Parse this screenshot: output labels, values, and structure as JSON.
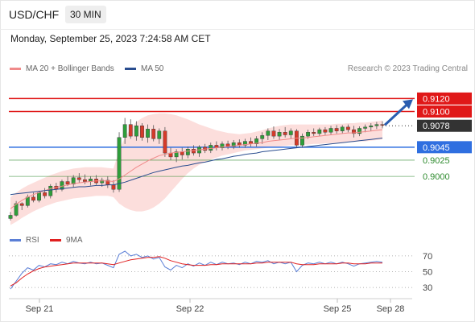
{
  "header": {
    "symbol": "USD/CHF",
    "timeframe": "30 MIN",
    "datetime": "Monday, September 25, 2023 7:24:58 AM CET"
  },
  "legend": {
    "ma20_label": "MA 20 + Bollinger Bands",
    "ma20_color": "#f08a8a",
    "ma50_label": "MA 50",
    "ma50_color": "#2a4d8f"
  },
  "credit": "Research © 2023 Trading Central",
  "rsi_legend": {
    "rsi_label": "RSI",
    "rsi_color": "#5b7fd6",
    "ma_label": "9MA",
    "ma_color": "#e02020"
  },
  "chart_data": [
    {
      "type": "line",
      "title": "",
      "ylim": [
        0.8912,
        0.9154
      ],
      "x_labels": [
        "Sep 21",
        "Sep 22",
        "Sep 25",
        "Sep 28"
      ],
      "candles": [
        [
          0.8935,
          0.8945,
          0.8932,
          0.894
        ],
        [
          0.894,
          0.8962,
          0.8938,
          0.8958
        ],
        [
          0.8958,
          0.896,
          0.8948,
          0.8955
        ],
        [
          0.8955,
          0.8972,
          0.8952,
          0.8968
        ],
        [
          0.8968,
          0.8975,
          0.896,
          0.8963
        ],
        [
          0.8963,
          0.8978,
          0.896,
          0.8975
        ],
        [
          0.8975,
          0.8982,
          0.8966,
          0.897
        ],
        [
          0.897,
          0.8988,
          0.8966,
          0.8985
        ],
        [
          0.8985,
          0.899,
          0.8975,
          0.898
        ],
        [
          0.898,
          0.8995,
          0.8977,
          0.8992
        ],
        [
          0.8992,
          0.9,
          0.8985,
          0.8988
        ],
        [
          0.8988,
          0.9002,
          0.8983,
          0.8998
        ],
        [
          0.8998,
          0.9005,
          0.899,
          0.8995
        ],
        [
          0.8995,
          0.9003,
          0.8988,
          0.8992
        ],
        [
          0.8992,
          0.9,
          0.8986,
          0.8996
        ],
        [
          0.8996,
          0.9002,
          0.8987,
          0.899
        ],
        [
          0.899,
          0.8998,
          0.8984,
          0.8994
        ],
        [
          0.8994,
          0.9,
          0.8982,
          0.8987
        ],
        [
          0.8987,
          0.8994,
          0.8975,
          0.898
        ],
        [
          0.898,
          0.9068,
          0.8976,
          0.906
        ],
        [
          0.906,
          0.909,
          0.905,
          0.908
        ],
        [
          0.908,
          0.9088,
          0.9058,
          0.9062
        ],
        [
          0.9062,
          0.9085,
          0.9055,
          0.9078
        ],
        [
          0.9078,
          0.9082,
          0.9055,
          0.906
        ],
        [
          0.906,
          0.908,
          0.9052,
          0.9073
        ],
        [
          0.9073,
          0.9079,
          0.9054,
          0.9058
        ],
        [
          0.9058,
          0.9074,
          0.905,
          0.907
        ],
        [
          0.907,
          0.9076,
          0.903,
          0.9036
        ],
        [
          0.9036,
          0.9044,
          0.9025,
          0.903
        ],
        [
          0.903,
          0.9042,
          0.9022,
          0.9038
        ],
        [
          0.9038,
          0.9044,
          0.9026,
          0.9033
        ],
        [
          0.9033,
          0.9046,
          0.9028,
          0.9042
        ],
        [
          0.9042,
          0.9048,
          0.9032,
          0.9036
        ],
        [
          0.9036,
          0.9048,
          0.903,
          0.9045
        ],
        [
          0.9045,
          0.905,
          0.9036,
          0.904
        ],
        [
          0.904,
          0.9052,
          0.9036,
          0.9048
        ],
        [
          0.9048,
          0.9054,
          0.904,
          0.9044
        ],
        [
          0.9044,
          0.9054,
          0.904,
          0.905
        ],
        [
          0.905,
          0.9055,
          0.9042,
          0.9046
        ],
        [
          0.9046,
          0.9056,
          0.9042,
          0.9052
        ],
        [
          0.9052,
          0.9057,
          0.9044,
          0.9048
        ],
        [
          0.9048,
          0.9058,
          0.9044,
          0.9054
        ],
        [
          0.9054,
          0.906,
          0.9046,
          0.905
        ],
        [
          0.905,
          0.9062,
          0.9046,
          0.9058
        ],
        [
          0.9058,
          0.9068,
          0.905,
          0.9063
        ],
        [
          0.9063,
          0.9074,
          0.9056,
          0.907
        ],
        [
          0.907,
          0.9077,
          0.9058,
          0.9062
        ],
        [
          0.9062,
          0.9073,
          0.9056,
          0.9068
        ],
        [
          0.9068,
          0.9076,
          0.906,
          0.9064
        ],
        [
          0.9064,
          0.9074,
          0.9058,
          0.907
        ],
        [
          0.907,
          0.9073,
          0.9044,
          0.9048
        ],
        [
          0.9048,
          0.9066,
          0.9044,
          0.9062
        ],
        [
          0.9062,
          0.9072,
          0.9058,
          0.9068
        ],
        [
          0.9068,
          0.9074,
          0.9062,
          0.9066
        ],
        [
          0.9066,
          0.9075,
          0.9062,
          0.9072
        ],
        [
          0.9072,
          0.9076,
          0.9064,
          0.9068
        ],
        [
          0.9068,
          0.9078,
          0.9064,
          0.9074
        ],
        [
          0.9074,
          0.9079,
          0.9066,
          0.907
        ],
        [
          0.907,
          0.9079,
          0.9066,
          0.9076
        ],
        [
          0.9076,
          0.908,
          0.9068,
          0.9072
        ],
        [
          0.9072,
          0.9078,
          0.906,
          0.9066
        ],
        [
          0.9066,
          0.9077,
          0.9062,
          0.9074
        ],
        [
          0.9074,
          0.908,
          0.9068,
          0.9076
        ],
        [
          0.9076,
          0.9082,
          0.907,
          0.9078
        ],
        [
          0.9078,
          0.9084,
          0.9073,
          0.908
        ],
        [
          0.908,
          0.9085,
          0.9074,
          0.9079
        ]
      ],
      "ma20": [
        0.895,
        0.8957,
        0.8963,
        0.8968,
        0.8972,
        0.8975,
        0.8978,
        0.8981,
        0.8983,
        0.8985,
        0.8987,
        0.8989,
        0.899,
        0.8991,
        0.8992,
        0.8993,
        0.8993,
        0.8993,
        0.8992,
        0.8996,
        0.9002,
        0.9008,
        0.9014,
        0.9019,
        0.9024,
        0.9028,
        0.9032,
        0.9034,
        0.9036,
        0.9037,
        0.9038,
        0.9039,
        0.904,
        0.9041,
        0.9042,
        0.9043,
        0.9044,
        0.9045,
        0.9046,
        0.9047,
        0.9048,
        0.9049,
        0.905,
        0.9051,
        0.9052,
        0.9054,
        0.9055,
        0.9056,
        0.9057,
        0.9058,
        0.9059,
        0.9059,
        0.906,
        0.9061,
        0.9062,
        0.9063,
        0.9064,
        0.9065,
        0.9066,
        0.9067,
        0.9067,
        0.9068,
        0.9069,
        0.907,
        0.9071,
        0.9072
      ],
      "bb_upper": [
        0.8968,
        0.8975,
        0.8981,
        0.8986,
        0.899,
        0.8994,
        0.8998,
        0.9002,
        0.9005,
        0.9008,
        0.901,
        0.9012,
        0.9013,
        0.9014,
        0.9014,
        0.9014,
        0.9014,
        0.9013,
        0.9012,
        0.904,
        0.906,
        0.9074,
        0.9084,
        0.909,
        0.9094,
        0.9096,
        0.9097,
        0.9097,
        0.9096,
        0.9094,
        0.9091,
        0.9088,
        0.9084,
        0.908,
        0.9077,
        0.9074,
        0.9071,
        0.9069,
        0.9067,
        0.9066,
        0.9065,
        0.9066,
        0.9067,
        0.9069,
        0.9071,
        0.9074,
        0.9076,
        0.9078,
        0.9079,
        0.908,
        0.908,
        0.908,
        0.908,
        0.908,
        0.908,
        0.908,
        0.908,
        0.9081,
        0.9081,
        0.9082,
        0.9082,
        0.9083,
        0.9083,
        0.9084,
        0.9085,
        0.9086
      ],
      "bb_lower": [
        0.8925,
        0.893,
        0.8936,
        0.8941,
        0.8946,
        0.895,
        0.8954,
        0.8957,
        0.896,
        0.8962,
        0.8964,
        0.8966,
        0.8967,
        0.8968,
        0.8969,
        0.897,
        0.897,
        0.897,
        0.8968,
        0.8958,
        0.8952,
        0.8948,
        0.8946,
        0.8946,
        0.8948,
        0.8952,
        0.8958,
        0.8966,
        0.8976,
        0.8986,
        0.8996,
        0.9005,
        0.9012,
        0.9018,
        0.9022,
        0.9026,
        0.9029,
        0.9032,
        0.9034,
        0.9036,
        0.9038,
        0.904,
        0.9041,
        0.9042,
        0.9043,
        0.9044,
        0.9045,
        0.9046,
        0.9047,
        0.9048,
        0.9048,
        0.9049,
        0.9049,
        0.905,
        0.905,
        0.9051,
        0.9051,
        0.9052,
        0.9052,
        0.9053,
        0.9053,
        0.9054,
        0.9054,
        0.9055,
        0.9056,
        0.9057
      ],
      "ma50": [
        0.8972,
        0.8973,
        0.8974,
        0.8975,
        0.8976,
        0.8977,
        0.8978,
        0.8979,
        0.898,
        0.8981,
        0.8982,
        0.8983,
        0.8984,
        0.8984,
        0.8985,
        0.8986,
        0.8986,
        0.8987,
        0.8987,
        0.8989,
        0.8991,
        0.8994,
        0.8997,
        0.9,
        0.9003,
        0.9006,
        0.9008,
        0.901,
        0.9012,
        0.9014,
        0.9016,
        0.9017,
        0.9019,
        0.9021,
        0.9022,
        0.9024,
        0.9026,
        0.9027,
        0.9029,
        0.9031,
        0.9032,
        0.9034,
        0.9035,
        0.9036,
        0.9038,
        0.9039,
        0.904,
        0.9041,
        0.9042,
        0.9043,
        0.9044,
        0.9045,
        0.9046,
        0.9047,
        0.9048,
        0.9049,
        0.905,
        0.9051,
        0.9052,
        0.9053,
        0.9054,
        0.9055,
        0.9056,
        0.9057,
        0.9058,
        0.9059
      ],
      "levels": [
        {
          "label": "0.9120",
          "value": 0.912,
          "color": "#e01818",
          "style": "line",
          "tag": "badge"
        },
        {
          "label": "0.9100",
          "value": 0.91,
          "color": "#e01818",
          "style": "line",
          "tag": "badge"
        },
        {
          "label": "0.9078",
          "value": 0.9078,
          "color": "#333333",
          "style": "dotted",
          "tag": "badge"
        },
        {
          "label": "0.9045",
          "value": 0.9045,
          "color": "#2f6fe0",
          "style": "line",
          "tag": "badge"
        },
        {
          "label": "0.9025",
          "value": 0.9025,
          "color": "#2e8b2e",
          "style": "thin",
          "tag": "text"
        },
        {
          "label": "0.9000",
          "value": 0.9,
          "color": "#2e8b2e",
          "style": "thin",
          "tag": "text"
        }
      ],
      "arrow": {
        "from": 0.9078,
        "to": 0.912,
        "color": "#2a5db0"
      }
    },
    {
      "type": "line",
      "title": "",
      "ylim": [
        22,
        78
      ],
      "y_ticks": [
        "70",
        "50",
        "30"
      ],
      "rsi": [
        28,
        38,
        48,
        55,
        52,
        58,
        56,
        60,
        59,
        62,
        60,
        63,
        61,
        60,
        62,
        60,
        61,
        58,
        55,
        72,
        76,
        70,
        72,
        68,
        70,
        66,
        68,
        56,
        52,
        58,
        55,
        60,
        57,
        61,
        58,
        62,
        59,
        62,
        60,
        61,
        59,
        62,
        60,
        63,
        62,
        64,
        60,
        62,
        60,
        62,
        50,
        58,
        61,
        60,
        62,
        60,
        62,
        60,
        62,
        60,
        57,
        60,
        61,
        62,
        63,
        62
      ],
      "rsi_ma": [
        32,
        36,
        42,
        47,
        51,
        54,
        56,
        57,
        58,
        59,
        60,
        61,
        61,
        61,
        61,
        61,
        61,
        60,
        59,
        61,
        63,
        65,
        66,
        67,
        68,
        68,
        69,
        67,
        64,
        62,
        60,
        59,
        58,
        58,
        58,
        59,
        59,
        60,
        60,
        60,
        60,
        60,
        60,
        61,
        61,
        62,
        62,
        62,
        62,
        62,
        60,
        59,
        59,
        59,
        60,
        60,
        60,
        60,
        61,
        61,
        60,
        60,
        60,
        61,
        61,
        61
      ]
    }
  ]
}
